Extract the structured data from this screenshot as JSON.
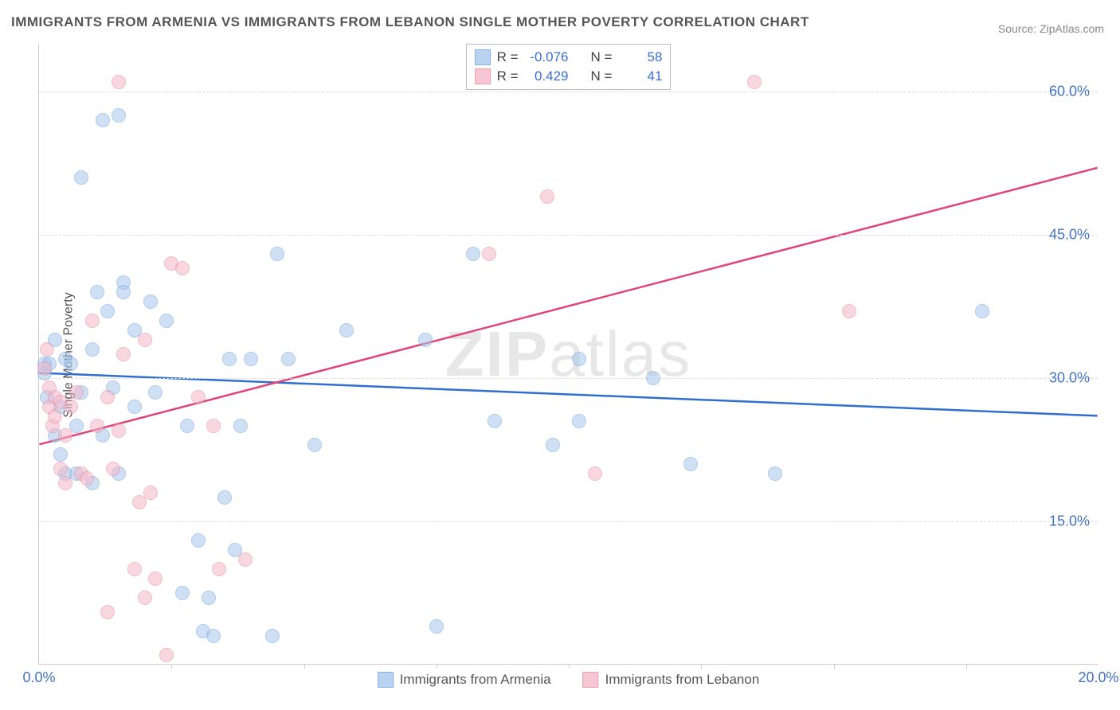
{
  "chart": {
    "type": "scatter",
    "title": "IMMIGRANTS FROM ARMENIA VS IMMIGRANTS FROM LEBANON SINGLE MOTHER POVERTY CORRELATION CHART",
    "source": "Source: ZipAtlas.com",
    "watermark": "ZIPatlas",
    "ylabel": "Single Mother Poverty",
    "background_color": "#ffffff",
    "grid_color": "#dddddd",
    "axis_color": "#cccccc",
    "tick_color": "#4472c4",
    "text_color": "#555555",
    "xlim": [
      0,
      20
    ],
    "ylim": [
      0,
      65
    ],
    "xticks": [
      {
        "v": 0,
        "label": "0.0%"
      },
      {
        "v": 20,
        "label": "20.0%"
      }
    ],
    "xtick_minor": [
      2.5,
      5,
      7.5,
      10,
      12.5,
      15,
      17.5
    ],
    "yticks": [
      {
        "v": 15,
        "label": "15.0%"
      },
      {
        "v": 30,
        "label": "30.0%"
      },
      {
        "v": 45,
        "label": "45.0%"
      },
      {
        "v": 60,
        "label": "60.0%"
      }
    ],
    "marker_radius": 9,
    "marker_border_width": 1.5,
    "line_width": 2.5,
    "series": [
      {
        "name": "Immigrants from Armenia",
        "fill_color": "#a8c8ec",
        "fill_opacity": 0.55,
        "border_color": "#6fa0dd",
        "line_color": "#2f6fd0",
        "R": "-0.076",
        "N": "58",
        "trend": {
          "x1": 0,
          "y1": 30.5,
          "x2": 20,
          "y2": 26.0
        },
        "points": [
          [
            0.1,
            30.5
          ],
          [
            0.1,
            31.5
          ],
          [
            0.15,
            28
          ],
          [
            0.2,
            31.5
          ],
          [
            0.3,
            24
          ],
          [
            0.3,
            34
          ],
          [
            0.4,
            27
          ],
          [
            0.4,
            22
          ],
          [
            0.5,
            20
          ],
          [
            0.5,
            32
          ],
          [
            0.6,
            31.5
          ],
          [
            0.7,
            25
          ],
          [
            0.7,
            20
          ],
          [
            0.8,
            28.5
          ],
          [
            0.8,
            51
          ],
          [
            1.0,
            19
          ],
          [
            1.0,
            33
          ],
          [
            1.1,
            39
          ],
          [
            1.2,
            24
          ],
          [
            1.2,
            57
          ],
          [
            1.3,
            37
          ],
          [
            1.4,
            29
          ],
          [
            1.5,
            57.5
          ],
          [
            1.5,
            20
          ],
          [
            1.6,
            40
          ],
          [
            1.6,
            39
          ],
          [
            1.8,
            35
          ],
          [
            1.8,
            27
          ],
          [
            2.1,
            38
          ],
          [
            2.2,
            28.5
          ],
          [
            2.4,
            36
          ],
          [
            2.7,
            7.5
          ],
          [
            2.8,
            25
          ],
          [
            3.0,
            13
          ],
          [
            3.1,
            3.5
          ],
          [
            3.2,
            7
          ],
          [
            3.3,
            3
          ],
          [
            3.5,
            17.5
          ],
          [
            3.6,
            32
          ],
          [
            3.7,
            12
          ],
          [
            3.8,
            25
          ],
          [
            4.0,
            32
          ],
          [
            4.4,
            3
          ],
          [
            4.5,
            43
          ],
          [
            4.7,
            32
          ],
          [
            5.2,
            23
          ],
          [
            5.8,
            35
          ],
          [
            7.3,
            34
          ],
          [
            7.5,
            4
          ],
          [
            8.2,
            43
          ],
          [
            8.6,
            25.5
          ],
          [
            9.7,
            23
          ],
          [
            10.2,
            25.5
          ],
          [
            10.2,
            32
          ],
          [
            11.6,
            30
          ],
          [
            12.3,
            21
          ],
          [
            13.9,
            20
          ],
          [
            17.8,
            37
          ]
        ]
      },
      {
        "name": "Immigrants from Lebanon",
        "fill_color": "#f5b8ca",
        "fill_opacity": 0.55,
        "border_color": "#e487a2",
        "line_color": "#e0457a",
        "R": "0.429",
        "N": "41",
        "trend": {
          "x1": 0,
          "y1": 23,
          "x2": 20,
          "y2": 52
        },
        "points": [
          [
            0.1,
            31
          ],
          [
            0.15,
            33
          ],
          [
            0.2,
            27
          ],
          [
            0.2,
            29
          ],
          [
            0.25,
            25
          ],
          [
            0.3,
            28
          ],
          [
            0.3,
            26
          ],
          [
            0.4,
            20.5
          ],
          [
            0.4,
            27.5
          ],
          [
            0.5,
            19
          ],
          [
            0.5,
            24
          ],
          [
            0.6,
            27
          ],
          [
            0.7,
            28.5
          ],
          [
            0.8,
            20
          ],
          [
            0.9,
            19.5
          ],
          [
            1.0,
            36
          ],
          [
            1.1,
            25
          ],
          [
            1.3,
            28
          ],
          [
            1.3,
            5.5
          ],
          [
            1.4,
            20.5
          ],
          [
            1.5,
            61
          ],
          [
            1.5,
            24.5
          ],
          [
            1.6,
            32.5
          ],
          [
            1.8,
            10
          ],
          [
            1.9,
            17
          ],
          [
            2.0,
            34
          ],
          [
            2.0,
            7
          ],
          [
            2.1,
            18
          ],
          [
            2.2,
            9
          ],
          [
            2.4,
            1
          ],
          [
            2.5,
            42
          ],
          [
            2.7,
            41.5
          ],
          [
            3.0,
            28
          ],
          [
            3.3,
            25
          ],
          [
            3.4,
            10
          ],
          [
            3.9,
            11
          ],
          [
            8.5,
            43
          ],
          [
            9.6,
            49
          ],
          [
            10.5,
            20
          ],
          [
            13.5,
            61
          ],
          [
            15.3,
            37
          ]
        ]
      }
    ],
    "legend_top": {
      "r_label": "R =",
      "n_label": "N ="
    },
    "legend_bottom": {
      "items": [
        {
          "label": "Immigrants from Armenia",
          "fill": "#a8c8ec",
          "border": "#6fa0dd"
        },
        {
          "label": "Immigrants from Lebanon",
          "fill": "#f5b8ca",
          "border": "#e487a2"
        }
      ]
    }
  }
}
